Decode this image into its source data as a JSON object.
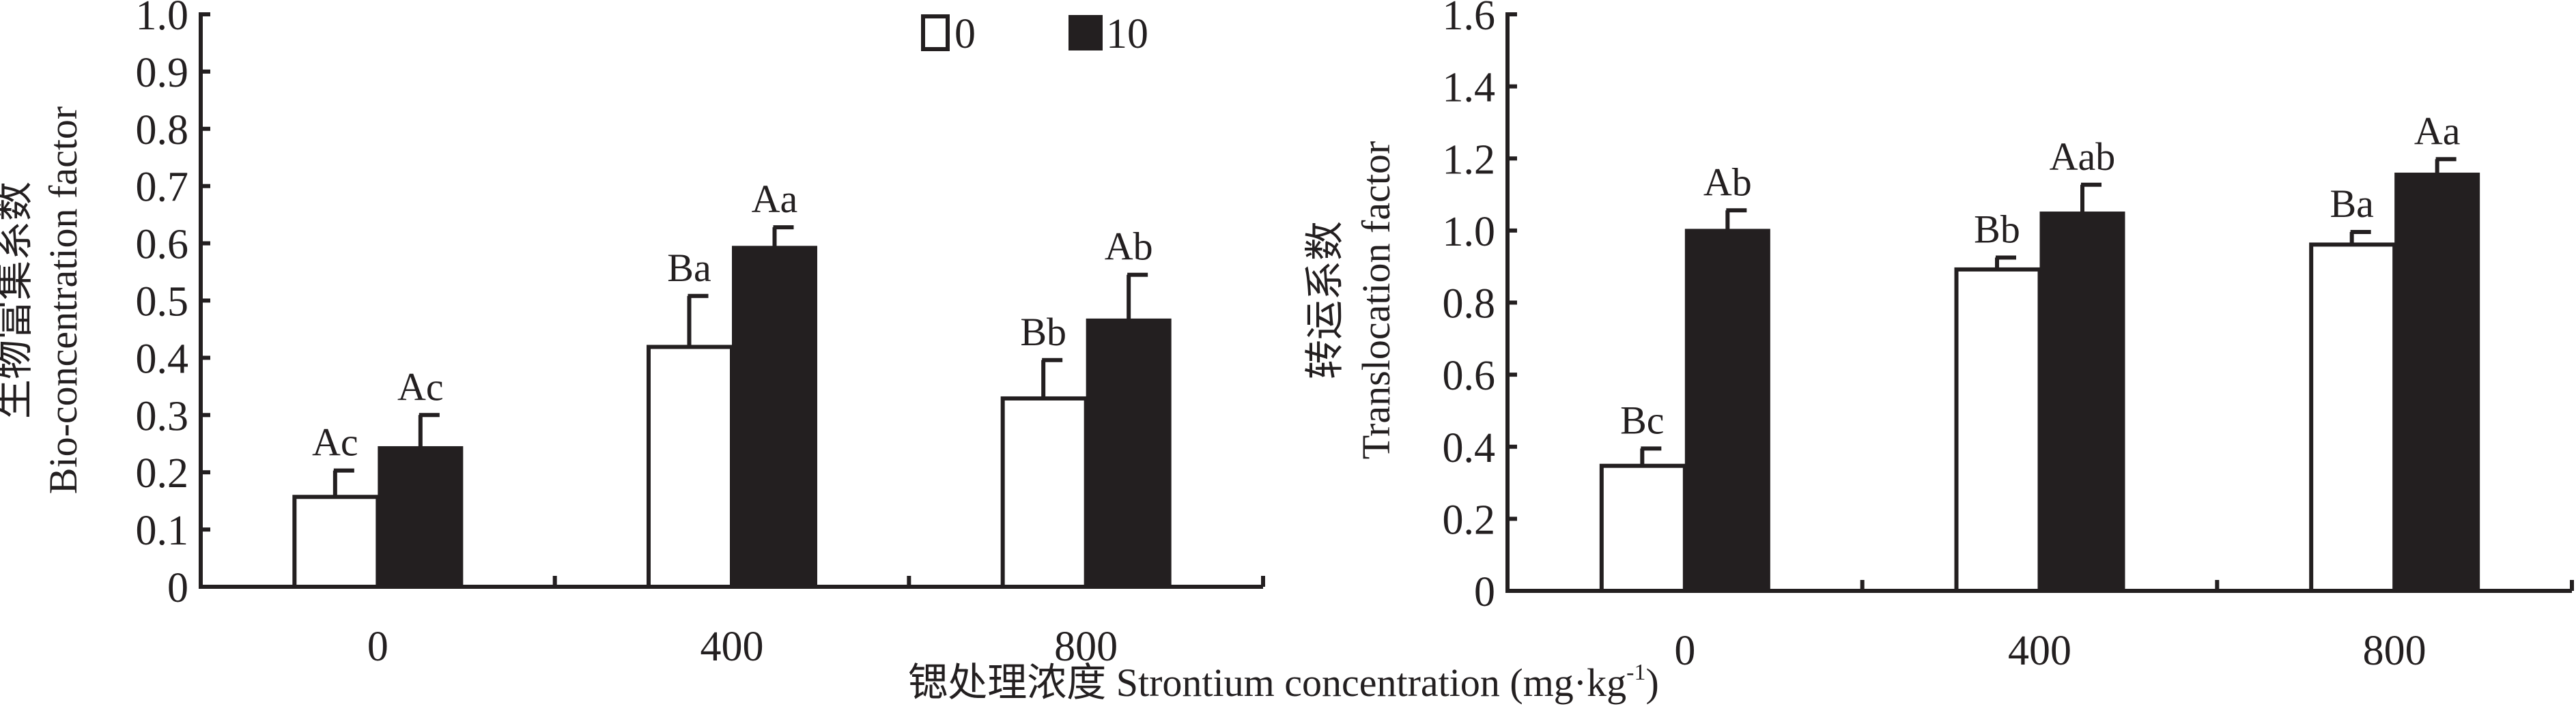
{
  "legend": {
    "items": [
      {
        "label": "0",
        "color": "#ffffff"
      },
      {
        "label": "10",
        "color": "#231f20"
      }
    ]
  },
  "x_axis_title": {
    "cn": "锶处理浓度",
    "en": "Strontium concentration (mg·kg",
    "sup": "-1",
    "close": ")"
  },
  "chart_data": [
    {
      "type": "bar",
      "title": "",
      "ylabel_cn": "生物富集系数",
      "ylabel": "Bio-concentration factor",
      "xlabel": "Strontium concentration (mg·kg-1)",
      "categories": [
        "0",
        "400",
        "800"
      ],
      "ylim": [
        0,
        1.0
      ],
      "yticks": [
        "0",
        "0.1",
        "0.2",
        "0.3",
        "0.4",
        "0.5",
        "0.6",
        "0.7",
        "0.8",
        "0.9",
        "1.0"
      ],
      "ytick_values": [
        0,
        0.1,
        0.2,
        0.3,
        0.4,
        0.5,
        0.6,
        0.7,
        0.8,
        0.9,
        1.0
      ],
      "grid": false,
      "series": [
        {
          "name": "0",
          "values": [
            0.157,
            0.419,
            0.329
          ],
          "errors": [
            0.046,
            0.089,
            0.067
          ],
          "labels": [
            "Ac",
            "Ba",
            "Bb"
          ]
        },
        {
          "name": "10",
          "values": [
            0.242,
            0.592,
            0.465
          ],
          "errors": [
            0.058,
            0.036,
            0.08
          ],
          "labels": [
            "Ac",
            "Aa",
            "Ab"
          ]
        }
      ]
    },
    {
      "type": "bar",
      "title": "",
      "ylabel_cn": "转运系数",
      "ylabel": "Translocation factor",
      "xlabel": "Strontium concentration (mg·kg-1)",
      "categories": [
        "0",
        "400",
        "800"
      ],
      "ylim": [
        0,
        1.6
      ],
      "yticks": [
        "0",
        "0.2",
        "0.4",
        "0.6",
        "0.8",
        "1.0",
        "1.2",
        "1.4",
        "1.6"
      ],
      "ytick_values": [
        0,
        0.2,
        0.4,
        0.6,
        0.8,
        1.0,
        1.2,
        1.4,
        1.6
      ],
      "grid": false,
      "series": [
        {
          "name": "0",
          "values": [
            0.347,
            0.892,
            0.961
          ],
          "errors": [
            0.048,
            0.033,
            0.035
          ],
          "labels": [
            "Bc",
            "Bb",
            "Ba"
          ]
        },
        {
          "name": "10",
          "values": [
            0.999,
            1.047,
            1.155
          ],
          "errors": [
            0.057,
            0.08,
            0.043
          ],
          "labels": [
            "Ab",
            "Aab",
            "Aa"
          ]
        }
      ]
    }
  ]
}
